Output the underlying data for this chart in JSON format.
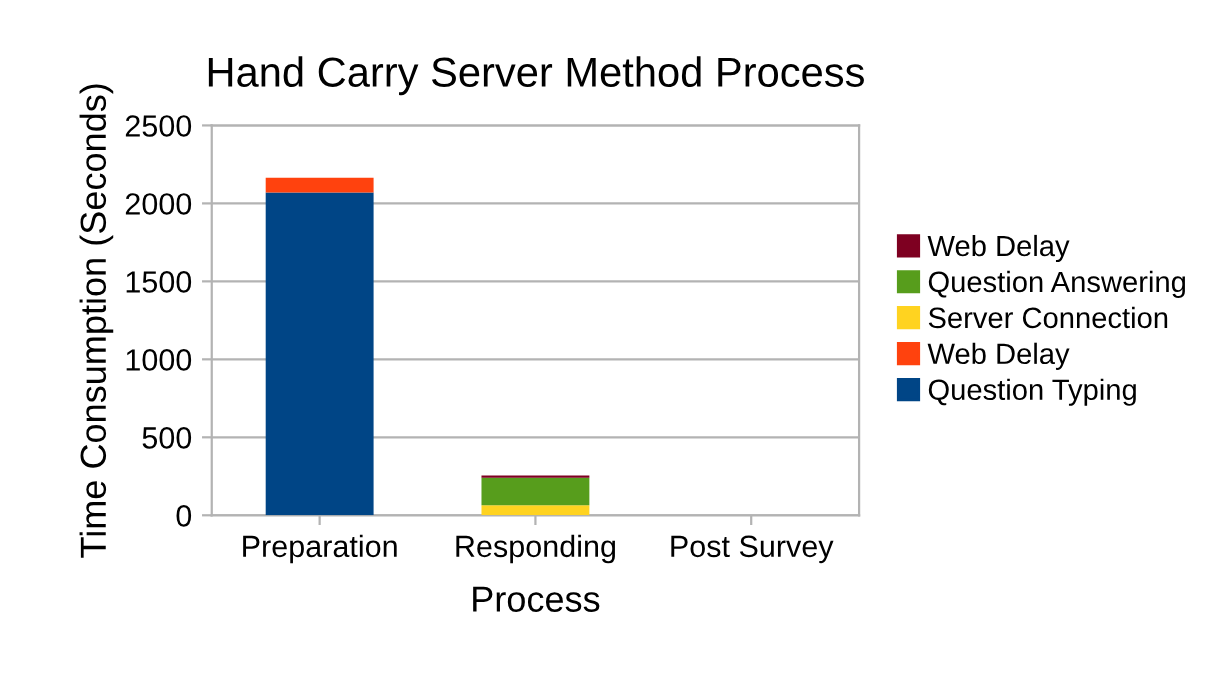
{
  "chart_data": {
    "type": "bar",
    "stacked": true,
    "title": "Hand Carry Server Method Process",
    "xlabel": "Process",
    "ylabel": "Time Consumption (Seconds)",
    "categories": [
      "Preparation",
      "Responding",
      "Post Survey"
    ],
    "series": [
      {
        "name": "Question Typing",
        "color": "#004586",
        "values": [
          2070,
          0,
          0
        ]
      },
      {
        "name": "Web Delay",
        "color": "#ff420e",
        "values": [
          95,
          0,
          0
        ]
      },
      {
        "name": "Server Connection",
        "color": "#ffd320",
        "values": [
          0,
          65,
          0
        ]
      },
      {
        "name": "Question Answering",
        "color": "#579d1c",
        "values": [
          0,
          175,
          0
        ]
      },
      {
        "name": "Web Delay",
        "color": "#7e0021",
        "values": [
          0,
          15,
          0
        ]
      }
    ],
    "ylim": [
      0,
      2500
    ],
    "yticks": [
      0,
      500,
      1000,
      1500,
      2000,
      2500
    ],
    "grid": "y",
    "legend": "right"
  }
}
